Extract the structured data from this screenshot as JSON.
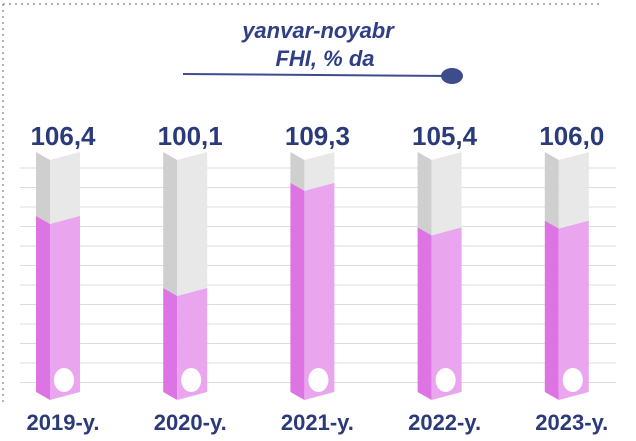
{
  "chart_data": {
    "type": "bar",
    "title": "yanvar-noyabr",
    "subtitle": "FHI, % da",
    "categories": [
      "2019-y.",
      "2020-y.",
      "2021-y.",
      "2022-y.",
      "2023-y."
    ],
    "values": [
      106.4,
      100.1,
      109.3,
      105.4,
      106.0
    ],
    "value_labels": [
      "106,4",
      "100,1",
      "109,3",
      "105,4",
      "106,0"
    ],
    "color": "#e9a6ef",
    "ylim": [
      91,
      112
    ]
  }
}
